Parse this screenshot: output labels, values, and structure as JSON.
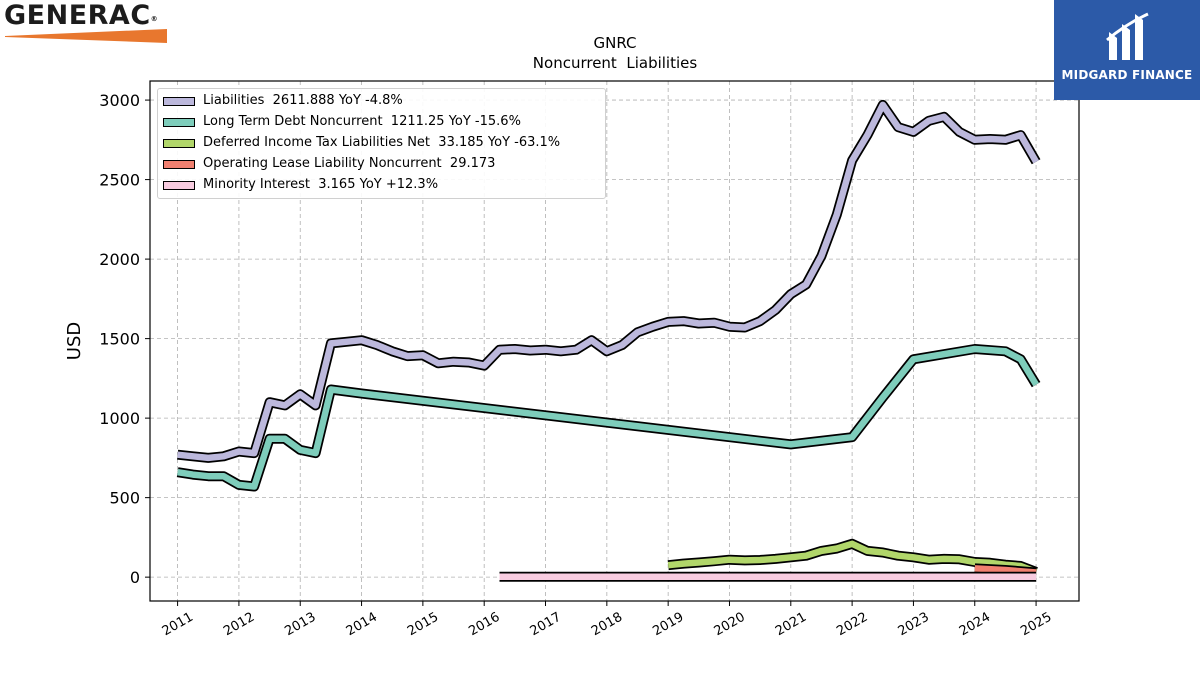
{
  "brand": {
    "left_logo_text": "GENERAC",
    "right_logo_text": "MIDGARD FINANCE",
    "left_logo_color": "#e8772e",
    "right_logo_bg": "#2c5aa8"
  },
  "chart_data": {
    "type": "line",
    "title": "GNRC",
    "subtitle": "Noncurrent  Liabilities",
    "xlabel": "",
    "ylabel": "USD",
    "xlim": [
      2010.55,
      2025.7
    ],
    "ylim": [
      -150,
      3120
    ],
    "grid": true,
    "legend_position": "top-left",
    "x_ticks": [
      2011,
      2012,
      2013,
      2014,
      2015,
      2016,
      2017,
      2018,
      2019,
      2020,
      2021,
      2022,
      2023,
      2024,
      2025
    ],
    "y_ticks": [
      0,
      500,
      1000,
      1500,
      2000,
      2500,
      3000
    ],
    "series": [
      {
        "name": "Liabilities",
        "legend": "Liabilities  2611.888 YoY -4.8%",
        "color": "#bcb8dc",
        "points": [
          [
            2011.0,
            770
          ],
          [
            2011.25,
            760
          ],
          [
            2011.5,
            750
          ],
          [
            2011.75,
            760
          ],
          [
            2012.0,
            790
          ],
          [
            2012.25,
            780
          ],
          [
            2012.5,
            1100
          ],
          [
            2012.75,
            1080
          ],
          [
            2013.0,
            1150
          ],
          [
            2013.25,
            1080
          ],
          [
            2013.5,
            1470
          ],
          [
            2013.75,
            1480
          ],
          [
            2014.0,
            1490
          ],
          [
            2014.25,
            1460
          ],
          [
            2014.5,
            1420
          ],
          [
            2014.75,
            1390
          ],
          [
            2015.0,
            1395
          ],
          [
            2015.25,
            1345
          ],
          [
            2015.5,
            1355
          ],
          [
            2015.75,
            1350
          ],
          [
            2016.0,
            1330
          ],
          [
            2016.25,
            1430
          ],
          [
            2016.5,
            1435
          ],
          [
            2016.75,
            1425
          ],
          [
            2017.0,
            1430
          ],
          [
            2017.25,
            1420
          ],
          [
            2017.5,
            1430
          ],
          [
            2017.75,
            1490
          ],
          [
            2018.0,
            1420
          ],
          [
            2018.25,
            1460
          ],
          [
            2018.5,
            1540
          ],
          [
            2018.75,
            1575
          ],
          [
            2019.0,
            1605
          ],
          [
            2019.25,
            1610
          ],
          [
            2019.5,
            1595
          ],
          [
            2019.75,
            1600
          ],
          [
            2020.0,
            1575
          ],
          [
            2020.25,
            1570
          ],
          [
            2020.5,
            1610
          ],
          [
            2020.75,
            1680
          ],
          [
            2021.0,
            1780
          ],
          [
            2021.25,
            1840
          ],
          [
            2021.5,
            2020
          ],
          [
            2021.75,
            2280
          ],
          [
            2022.0,
            2620
          ],
          [
            2022.25,
            2780
          ],
          [
            2022.5,
            2970
          ],
          [
            2022.75,
            2830
          ],
          [
            2023.0,
            2800
          ],
          [
            2023.25,
            2870
          ],
          [
            2023.5,
            2895
          ],
          [
            2023.75,
            2800
          ],
          [
            2024.0,
            2750
          ],
          [
            2024.25,
            2755
          ],
          [
            2024.5,
            2750
          ],
          [
            2024.75,
            2780
          ],
          [
            2025.0,
            2612
          ]
        ]
      },
      {
        "name": "Long Term Debt Noncurrent",
        "legend": "Long Term Debt Noncurrent  1211.25 YoY -15.6%",
        "color": "#7ecdbb",
        "points": [
          [
            2011.0,
            660
          ],
          [
            2011.25,
            645
          ],
          [
            2011.5,
            635
          ],
          [
            2011.75,
            635
          ],
          [
            2012.0,
            580
          ],
          [
            2012.25,
            570
          ],
          [
            2012.5,
            870
          ],
          [
            2012.75,
            870
          ],
          [
            2013.0,
            800
          ],
          [
            2013.25,
            780
          ],
          [
            2013.5,
            1180
          ],
          [
            2014.0,
            1155
          ],
          [
            2021.0,
            835
          ],
          [
            2022.0,
            880
          ],
          [
            2022.5,
            1130
          ],
          [
            2023.0,
            1370
          ],
          [
            2024.0,
            1435
          ],
          [
            2024.5,
            1420
          ],
          [
            2024.75,
            1370
          ],
          [
            2025.0,
            1211
          ]
        ]
      },
      {
        "name": "Deferred Income Tax Liabilities Net",
        "legend": "Deferred Income Tax Liabilities Net  33.185 YoY -63.1%",
        "color": "#b1d66a",
        "points": [
          [
            2019.0,
            75
          ],
          [
            2019.25,
            85
          ],
          [
            2019.5,
            92
          ],
          [
            2019.75,
            100
          ],
          [
            2020.0,
            110
          ],
          [
            2020.25,
            105
          ],
          [
            2020.5,
            108
          ],
          [
            2020.75,
            115
          ],
          [
            2021.0,
            125
          ],
          [
            2021.25,
            135
          ],
          [
            2021.5,
            165
          ],
          [
            2021.75,
            180
          ],
          [
            2022.0,
            210
          ],
          [
            2022.25,
            165
          ],
          [
            2022.5,
            155
          ],
          [
            2022.75,
            135
          ],
          [
            2023.0,
            125
          ],
          [
            2023.25,
            110
          ],
          [
            2023.5,
            115
          ],
          [
            2023.75,
            112
          ],
          [
            2024.0,
            95
          ],
          [
            2024.25,
            90
          ],
          [
            2024.5,
            78
          ],
          [
            2024.75,
            70
          ],
          [
            2025.0,
            33
          ]
        ]
      },
      {
        "name": "Operating Lease Liability Noncurrent",
        "legend": "Operating Lease Liability Noncurrent  29.173",
        "color": "#f08070",
        "points": [
          [
            2024.0,
            55
          ],
          [
            2024.5,
            45
          ],
          [
            2025.0,
            29
          ]
        ]
      },
      {
        "name": "Minority Interest",
        "legend": "Minority Interest  3.165 YoY +12.3%",
        "color": "#f8cce0",
        "points": [
          [
            2016.25,
            3
          ],
          [
            2025.0,
            3
          ]
        ]
      }
    ]
  }
}
